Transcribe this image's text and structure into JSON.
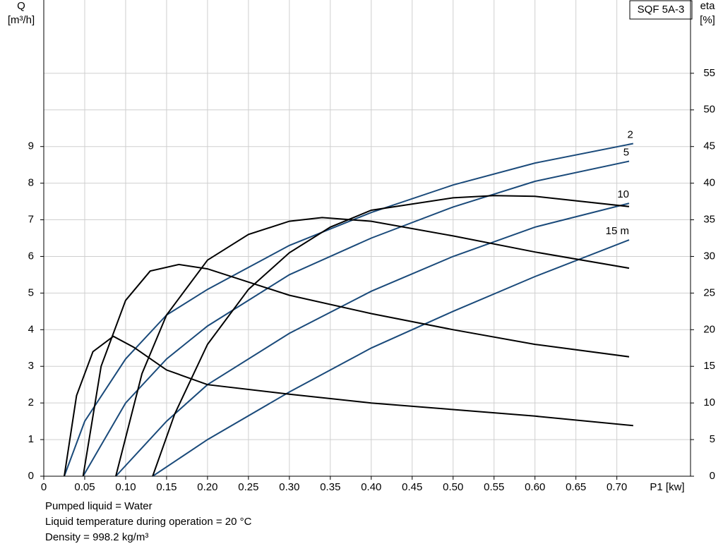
{
  "chart_data": {
    "type": "line",
    "title": "SQF 5A-3",
    "y_label": "Q",
    "y_unit": "[m³/h]",
    "y2_label": "eta",
    "y2_unit": "[%]",
    "x_label": "P1 [kw]",
    "notes": [
      "Pumped liquid = Water",
      "Liquid temperature during operation = 20 °C",
      "Density = 998.2 kg/m³"
    ],
    "xlim": [
      0,
      0.79
    ],
    "xticks": [
      0,
      {
        "value": 0.05,
        "label": "0.05"
      },
      {
        "value": 0.1,
        "label": "0.10"
      },
      {
        "value": 0.15,
        "label": "0.15"
      },
      {
        "value": 0.2,
        "label": "0.20"
      },
      {
        "value": 0.25,
        "label": "0.25"
      },
      {
        "value": 0.3,
        "label": "0.30"
      },
      {
        "value": 0.35,
        "label": "0.35"
      },
      {
        "value": 0.4,
        "label": "0.40"
      },
      {
        "value": 0.45,
        "label": "0.45"
      },
      {
        "value": 0.5,
        "label": "0.50"
      },
      {
        "value": 0.55,
        "label": "0.55"
      },
      {
        "value": 0.6,
        "label": "0.60"
      },
      {
        "value": 0.65,
        "label": "0.65"
      },
      {
        "value": 0.7,
        "label": "0.70"
      }
    ],
    "ylim": [
      0,
      13
    ],
    "yticks": [
      0,
      1,
      2,
      3,
      4,
      5,
      6,
      7,
      8,
      9
    ],
    "y2lim": [
      0,
      65
    ],
    "y2ticks": [
      0,
      5,
      10,
      15,
      20,
      25,
      30,
      35,
      40,
      45,
      50,
      55
    ],
    "grid": true,
    "series": [
      {
        "name": "2",
        "color": "#1a4a7a",
        "x": [
          0.025,
          0.05,
          0.1,
          0.15,
          0.2,
          0.3,
          0.4,
          0.5,
          0.6,
          0.72
        ],
        "values": [
          0,
          1.5,
          3.2,
          4.4,
          5.1,
          6.3,
          7.2,
          7.95,
          8.55,
          9.08
        ]
      },
      {
        "name": "5",
        "color": "#1a4a7a",
        "x": [
          0.048,
          0.1,
          0.15,
          0.2,
          0.3,
          0.4,
          0.5,
          0.6,
          0.715
        ],
        "values": [
          0,
          2.0,
          3.2,
          4.1,
          5.5,
          6.5,
          7.35,
          8.05,
          8.6
        ]
      },
      {
        "name": "10",
        "color": "#1a4a7a",
        "x": [
          0.088,
          0.15,
          0.2,
          0.3,
          0.4,
          0.5,
          0.6,
          0.715
        ],
        "values": [
          0,
          1.5,
          2.5,
          3.9,
          5.05,
          6.0,
          6.8,
          7.45
        ]
      },
      {
        "name": "15 m",
        "color": "#1a4a7a",
        "x": [
          0.133,
          0.2,
          0.3,
          0.4,
          0.5,
          0.6,
          0.715
        ],
        "values": [
          0,
          1.0,
          2.3,
          3.5,
          4.5,
          5.45,
          6.45
        ]
      },
      {
        "color": "#000000",
        "axis": "y2",
        "x": [
          0.025,
          0.04,
          0.06,
          0.085,
          0.11,
          0.15,
          0.2,
          0.3,
          0.4,
          0.5,
          0.6,
          0.72
        ],
        "values": [
          0,
          11,
          17,
          19.1,
          17.6,
          14.5,
          12.5,
          11.2,
          10,
          9.1,
          8.2,
          6.9
        ]
      },
      {
        "color": "#000000",
        "axis": "y2",
        "x": [
          0.048,
          0.07,
          0.1,
          0.13,
          0.165,
          0.2,
          0.25,
          0.3,
          0.4,
          0.5,
          0.6,
          0.715
        ],
        "values": [
          0,
          15,
          24,
          28,
          28.9,
          28.3,
          26.5,
          24.7,
          22.2,
          20,
          18,
          16.3
        ]
      },
      {
        "color": "#000000",
        "axis": "y2",
        "x": [
          0.088,
          0.12,
          0.15,
          0.2,
          0.25,
          0.3,
          0.34,
          0.4,
          0.5,
          0.6,
          0.715
        ],
        "values": [
          0,
          14,
          22,
          29.5,
          33,
          34.8,
          35.3,
          34.8,
          32.8,
          30.6,
          28.4
        ]
      },
      {
        "color": "#000000",
        "axis": "y2",
        "x": [
          0.133,
          0.16,
          0.2,
          0.25,
          0.3,
          0.35,
          0.4,
          0.5,
          0.55,
          0.6,
          0.715
        ],
        "values": [
          0,
          8.5,
          18,
          25.5,
          30.5,
          34,
          36.3,
          38,
          38.3,
          38.2,
          36.8
        ]
      }
    ]
  }
}
